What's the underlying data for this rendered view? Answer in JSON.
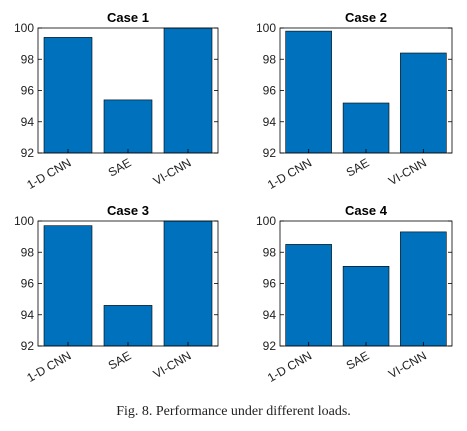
{
  "chart_data": [
    {
      "type": "bar",
      "title": "Case 1",
      "categories": [
        "1-D CNN",
        "SAE",
        "VI-CNN"
      ],
      "values": [
        99.4,
        95.4,
        100
      ],
      "ylim": [
        92,
        100
      ],
      "yticks": [
        92,
        94,
        96,
        98,
        100
      ],
      "xlabel": "",
      "ylabel": "",
      "bar_color": "#0072BD"
    },
    {
      "type": "bar",
      "title": "Case 2",
      "categories": [
        "1-D CNN",
        "SAE",
        "VI-CNN"
      ],
      "values": [
        99.8,
        95.2,
        98.4
      ],
      "ylim": [
        92,
        100
      ],
      "yticks": [
        92,
        94,
        96,
        98,
        100
      ],
      "xlabel": "",
      "ylabel": "",
      "bar_color": "#0072BD"
    },
    {
      "type": "bar",
      "title": "Case 3",
      "categories": [
        "1-D CNN",
        "SAE",
        "VI-CNN"
      ],
      "values": [
        99.7,
        94.6,
        100
      ],
      "ylim": [
        92,
        100
      ],
      "yticks": [
        92,
        94,
        96,
        98,
        100
      ],
      "xlabel": "",
      "ylabel": "",
      "bar_color": "#0072BD"
    },
    {
      "type": "bar",
      "title": "Case 4",
      "categories": [
        "1-D CNN",
        "SAE",
        "VI-CNN"
      ],
      "values": [
        98.5,
        97.1,
        99.3
      ],
      "ylim": [
        92,
        100
      ],
      "yticks": [
        92,
        94,
        96,
        98,
        100
      ],
      "xlabel": "",
      "ylabel": "",
      "bar_color": "#0072BD"
    }
  ],
  "caption": "Fig. 8.  Performance under different loads."
}
